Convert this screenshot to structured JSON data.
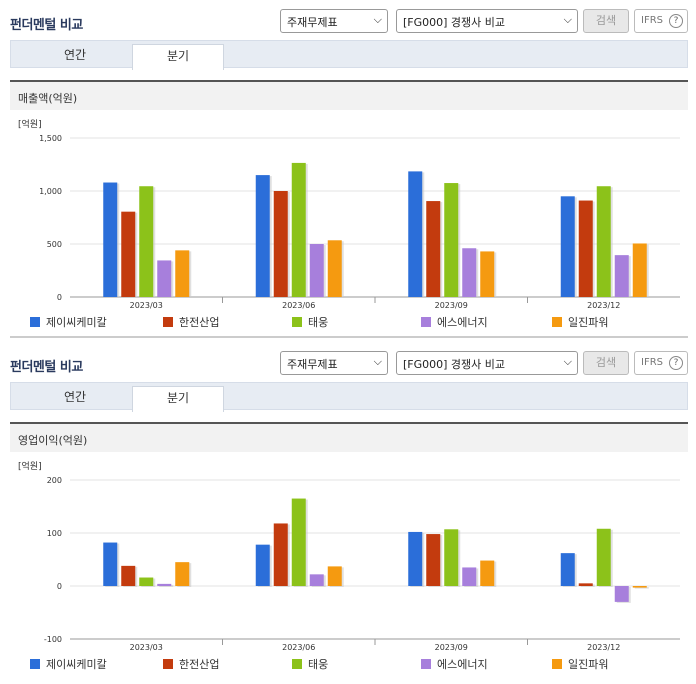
{
  "panels": [
    {
      "title": "펀더멘털 비교",
      "select1": "주재무제표",
      "select2": "[FG000] 경쟁사 비교",
      "search_btn": "검색",
      "ifrs_btn": "IFRS",
      "tabs": [
        "연간",
        "분기"
      ],
      "active_tab": "분기",
      "subheader": "매출액(억원)"
    },
    {
      "title": "펀더멘털 비교",
      "select1": "주재무제표",
      "select2": "[FG000] 경쟁사 비교",
      "search_btn": "검색",
      "ifrs_btn": "IFRS",
      "tabs": [
        "연간",
        "분기"
      ],
      "active_tab": "분기",
      "subheader": "영업이익(억원)"
    }
  ],
  "colors": {
    "제이씨케미칼": "#2b6ed9",
    "한전산업": "#c33b0e",
    "태웅": "#8cc21a",
    "에스에너지": "#a77fdc",
    "일진파워": "#f59a10"
  },
  "chart_data": [
    {
      "type": "bar",
      "unit_label": "[억원]",
      "categories": [
        "2023/03",
        "2023/06",
        "2023/09",
        "2023/12"
      ],
      "ylim": [
        0,
        1500
      ],
      "yticks": [
        "0",
        "500",
        "1,000",
        "1,500"
      ],
      "ytick_values": [
        0,
        500,
        1000,
        1500
      ],
      "series": [
        {
          "name": "제이씨케미칼",
          "values": [
            1080,
            1150,
            1185,
            950
          ]
        },
        {
          "name": "한전산업",
          "values": [
            805,
            1000,
            905,
            910
          ]
        },
        {
          "name": "태웅",
          "values": [
            1045,
            1265,
            1075,
            1045
          ]
        },
        {
          "name": "에스에너지",
          "values": [
            345,
            500,
            460,
            395
          ]
        },
        {
          "name": "일진파워",
          "values": [
            440,
            535,
            430,
            505
          ]
        }
      ]
    },
    {
      "type": "bar",
      "unit_label": "[억원]",
      "categories": [
        "2023/03",
        "2023/06",
        "2023/09",
        "2023/12"
      ],
      "ylim": [
        -100,
        200
      ],
      "yticks": [
        "-100",
        "0",
        "100",
        "200"
      ],
      "ytick_values": [
        -100,
        0,
        100,
        200
      ],
      "series": [
        {
          "name": "제이씨케미칼",
          "values": [
            82,
            78,
            102,
            62
          ]
        },
        {
          "name": "한전산업",
          "values": [
            38,
            118,
            98,
            5
          ]
        },
        {
          "name": "태웅",
          "values": [
            16,
            165,
            107,
            108
          ]
        },
        {
          "name": "에스에너지",
          "values": [
            4,
            22,
            35,
            -30
          ]
        },
        {
          "name": "일진파워",
          "values": [
            45,
            37,
            48,
            -3
          ]
        }
      ]
    }
  ]
}
